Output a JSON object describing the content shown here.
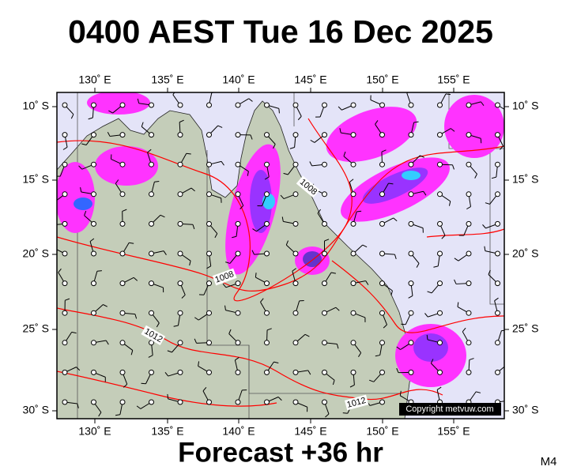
{
  "title": "0400 AEST Tue 16 Dec 2025",
  "map": {
    "top_labels": [
      "130˚ E",
      "135˚ E",
      "140˚ E",
      "145˚ E",
      "150˚ E",
      "155˚ E"
    ],
    "bottom_labels": [
      "130˚ E",
      "135˚ E",
      "140˚ E",
      "145˚ E",
      "150˚ E",
      "155˚ E"
    ],
    "left_labels": [
      "10˚ S",
      "15˚ S",
      "20˚ S",
      "25˚ S",
      "30˚ S"
    ],
    "right_labels": [
      "10˚ S",
      "15˚ S",
      "20˚ S",
      "25˚ S",
      "30˚ S"
    ],
    "isobar_labels": [
      "1008",
      "1008",
      "1012",
      "1012"
    ],
    "copyright": "Copyright metvuw.com"
  },
  "footer": {
    "forecast": "Forecast +36 hr",
    "model": "M4"
  }
}
